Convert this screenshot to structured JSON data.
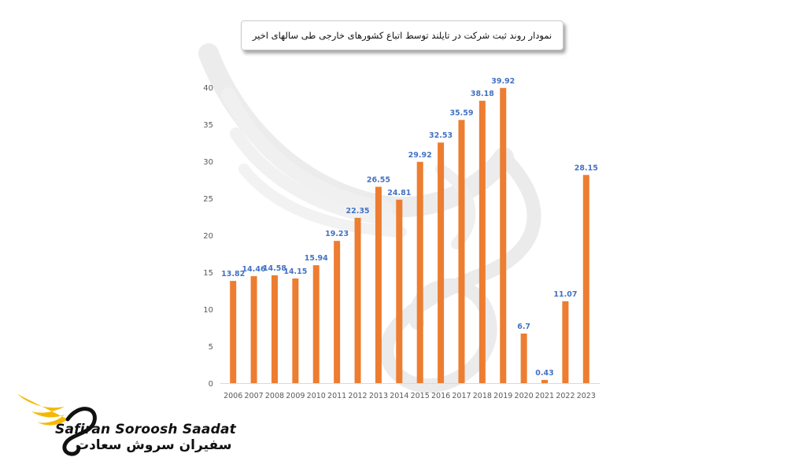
{
  "title": "نمودار روند ثبت شرکت در تایلند توسط اتباع کشورهای خارجی طی سالهای اخیر",
  "brand": {
    "name_latin": "Safiran Soroosh Saadat",
    "name_farsi": "سفیران سروش سعادت",
    "accent_color": "#f5b800",
    "text_color": "#111111"
  },
  "colors": {
    "bar": "#ed7d31",
    "data_label": "#4472c4",
    "axis_text": "#595959",
    "watermark": "#e6e6e6"
  },
  "chart_data": {
    "type": "bar",
    "categories": [
      "2006",
      "2007",
      "2008",
      "2009",
      "2010",
      "2011",
      "2012",
      "2013",
      "2014",
      "2015",
      "2016",
      "2017",
      "2018",
      "2019",
      "2020",
      "2021",
      "2022",
      "2023"
    ],
    "values": [
      13.82,
      14.46,
      14.58,
      14.15,
      15.94,
      19.23,
      22.35,
      26.55,
      24.81,
      29.92,
      32.53,
      35.59,
      38.18,
      39.92,
      6.7,
      0.43,
      11.07,
      28.15
    ],
    "data_labels": [
      "13.82",
      "14.46",
      "14.58",
      "14.15",
      "15.94",
      "19.23",
      "22.35",
      "26.55",
      "24.81",
      "29.92",
      "32.53",
      "35.59",
      "38.18",
      "39.92",
      "6.7",
      "0.43",
      "11.07",
      "28.15"
    ],
    "yticks": [
      "0",
      "5",
      "10",
      "15",
      "20",
      "25",
      "30",
      "35",
      "40"
    ],
    "ylim": [
      0,
      40
    ],
    "grid": false,
    "legend": "none",
    "xlabel": "",
    "ylabel": ""
  }
}
